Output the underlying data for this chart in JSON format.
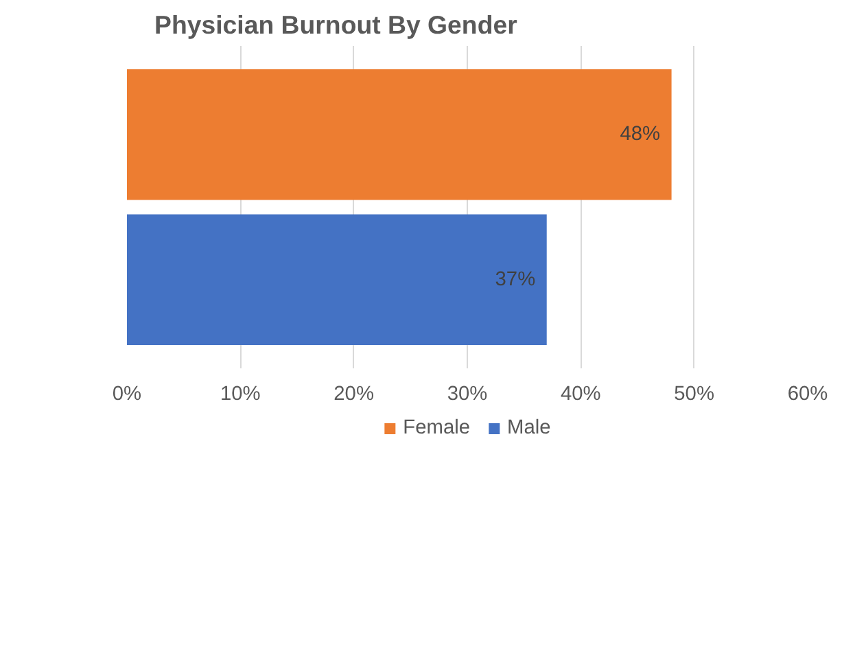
{
  "chart_data": {
    "type": "bar",
    "title": "Physician Burnout By Gender",
    "orientation": "horizontal",
    "categories": [
      null
    ],
    "series": [
      {
        "name": "Female",
        "color": "#ed7d31",
        "values": [
          48
        ],
        "value_labels": [
          "48%"
        ]
      },
      {
        "name": "Male",
        "color": "#4472c4",
        "values": [
          37
        ],
        "value_labels": [
          "37%"
        ]
      }
    ],
    "xlim": [
      0,
      60
    ],
    "xticks": [
      {
        "value": 0,
        "label": "0%"
      },
      {
        "value": 10,
        "label": "10%"
      },
      {
        "value": 20,
        "label": "20%"
      },
      {
        "value": 30,
        "label": "30%"
      },
      {
        "value": 40,
        "label": "40%"
      },
      {
        "value": 50,
        "label": "50%"
      },
      {
        "value": 60,
        "label": "60%"
      }
    ],
    "grid": "x",
    "legend": "bottom"
  }
}
